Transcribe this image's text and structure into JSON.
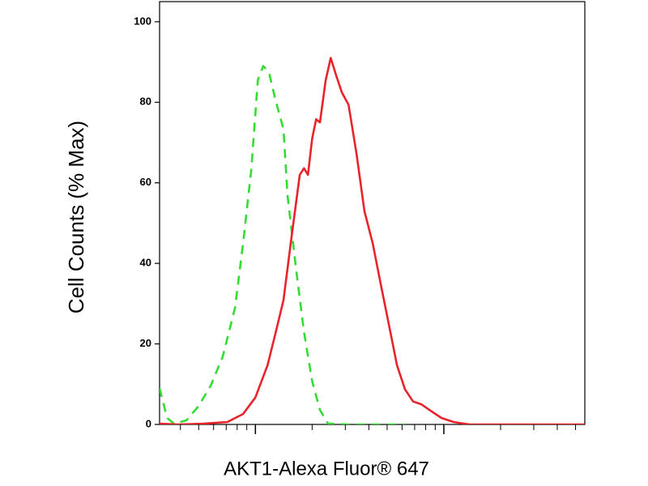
{
  "chart_data": {
    "type": "line",
    "x_label": "AKT1-Alexa Fluor® 647",
    "y_label": "Cell Counts (% Max)",
    "xscale": "log",
    "xlim": [
      31,
      5600
    ],
    "xticks": [
      40,
      50,
      60,
      70,
      80,
      90,
      100,
      200,
      300,
      400,
      500,
      600,
      700,
      800,
      900,
      1000,
      2000,
      3000,
      4000,
      5000
    ],
    "ylim": [
      0,
      105
    ],
    "yticks": [
      0,
      20,
      40,
      60,
      80,
      100
    ],
    "series": [
      {
        "color": "#33dd33",
        "dash": true,
        "x": [
          31,
          34,
          37,
          43,
          50,
          58,
          67,
          78,
          86,
          95,
          103,
          110,
          118,
          128,
          141,
          148,
          164,
          181,
          200,
          220,
          243,
          312,
          622
        ],
        "values": [
          9,
          1.6,
          0.2,
          1,
          4.6,
          9.7,
          16.8,
          29,
          45,
          63,
          85.5,
          89,
          87.5,
          80.4,
          73.3,
          57,
          39,
          23,
          10.7,
          3.6,
          0.2,
          0,
          0
        ]
      },
      {
        "color": "#e8232a",
        "dash": false,
        "x": [
          31,
          39,
          53,
          71,
          86,
          100,
          116,
          128,
          141,
          156,
          172,
          181,
          190,
          200,
          210,
          220,
          236,
          251,
          269,
          288,
          312,
          344,
          379,
          419,
          462,
          511,
          564,
          622,
          687,
          759,
          838,
          971,
          1127,
          1371,
          2742,
          5585
        ],
        "values": [
          0.2,
          0,
          0.2,
          0.6,
          2.6,
          6.7,
          14.7,
          22.8,
          30.9,
          47,
          62,
          63.6,
          62,
          71,
          75.8,
          75,
          85.5,
          91,
          86.5,
          82.4,
          79.4,
          67.3,
          53,
          45,
          35,
          24.8,
          14.7,
          8.7,
          5.7,
          5,
          3.6,
          1.6,
          0.6,
          0,
          0,
          0
        ]
      }
    ]
  }
}
